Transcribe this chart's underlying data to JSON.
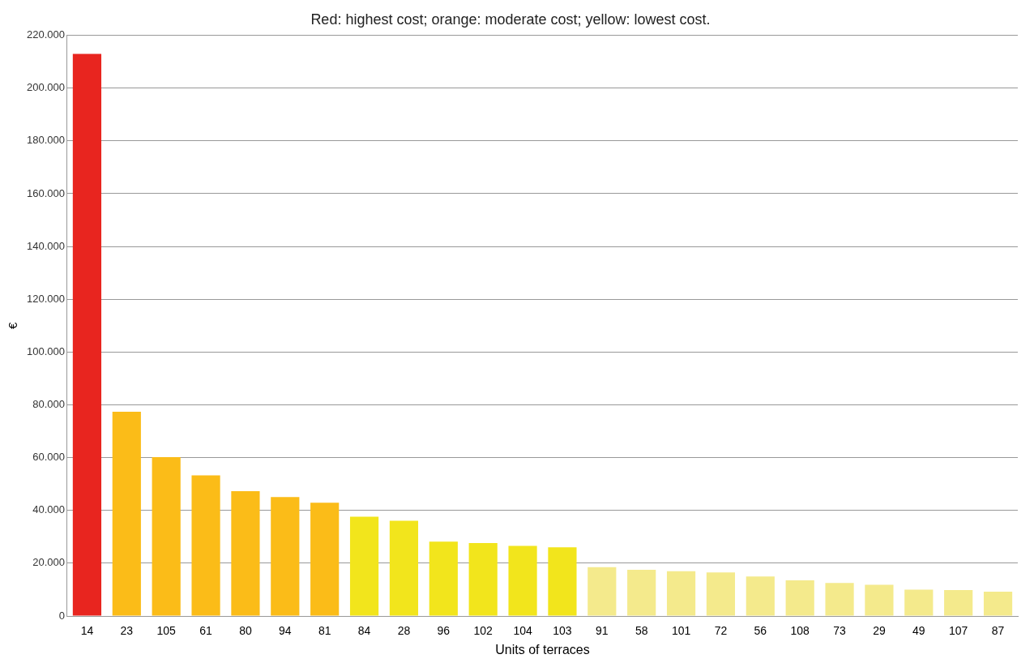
{
  "chart_data": {
    "type": "bar",
    "title": "Red: highest cost; orange: moderate cost; yellow: lowest cost.",
    "xlabel": "Units of terraces",
    "ylabel": "€",
    "categories": [
      "14",
      "23",
      "105",
      "61",
      "80",
      "94",
      "81",
      "84",
      "28",
      "96",
      "102",
      "104",
      "103",
      "91",
      "58",
      "101",
      "72",
      "56",
      "108",
      "73",
      "29",
      "49",
      "107",
      "87"
    ],
    "values": [
      213000,
      77400,
      60200,
      53300,
      47300,
      45100,
      42900,
      37600,
      36100,
      28200,
      27600,
      26600,
      26000,
      18500,
      17500,
      17000,
      16500,
      15000,
      13500,
      12500,
      11800,
      10000,
      9800,
      9200
    ],
    "colors": [
      "#e8251f",
      "#fbbc18",
      "#fbbc18",
      "#fbbc18",
      "#fbbc18",
      "#fbbc18",
      "#fbbc18",
      "#f2e51c",
      "#f2e51c",
      "#f2e51c",
      "#f2e51c",
      "#f2e51c",
      "#f2e51c",
      "#f4ea8c",
      "#f4ea8c",
      "#f4ea8c",
      "#f4ea8c",
      "#f4ea8c",
      "#f4ea8c",
      "#f4ea8c",
      "#f4ea8c",
      "#f4ea8c",
      "#f4ea8c",
      "#f4ea8c"
    ],
    "ylim": [
      0,
      220000
    ],
    "yticks": [
      {
        "value": 0,
        "label": "0"
      },
      {
        "value": 20000,
        "label": "20.000"
      },
      {
        "value": 40000,
        "label": "40.000"
      },
      {
        "value": 60000,
        "label": "60.000"
      },
      {
        "value": 80000,
        "label": "80.000"
      },
      {
        "value": 100000,
        "label": "100.000"
      },
      {
        "value": 120000,
        "label": "120.000"
      },
      {
        "value": 140000,
        "label": "140.000"
      },
      {
        "value": 160000,
        "label": "160.000"
      },
      {
        "value": 180000,
        "label": "180.000"
      },
      {
        "value": 200000,
        "label": "200.000"
      },
      {
        "value": 220000,
        "label": "220.000"
      }
    ],
    "grid": "y",
    "legend": false
  }
}
